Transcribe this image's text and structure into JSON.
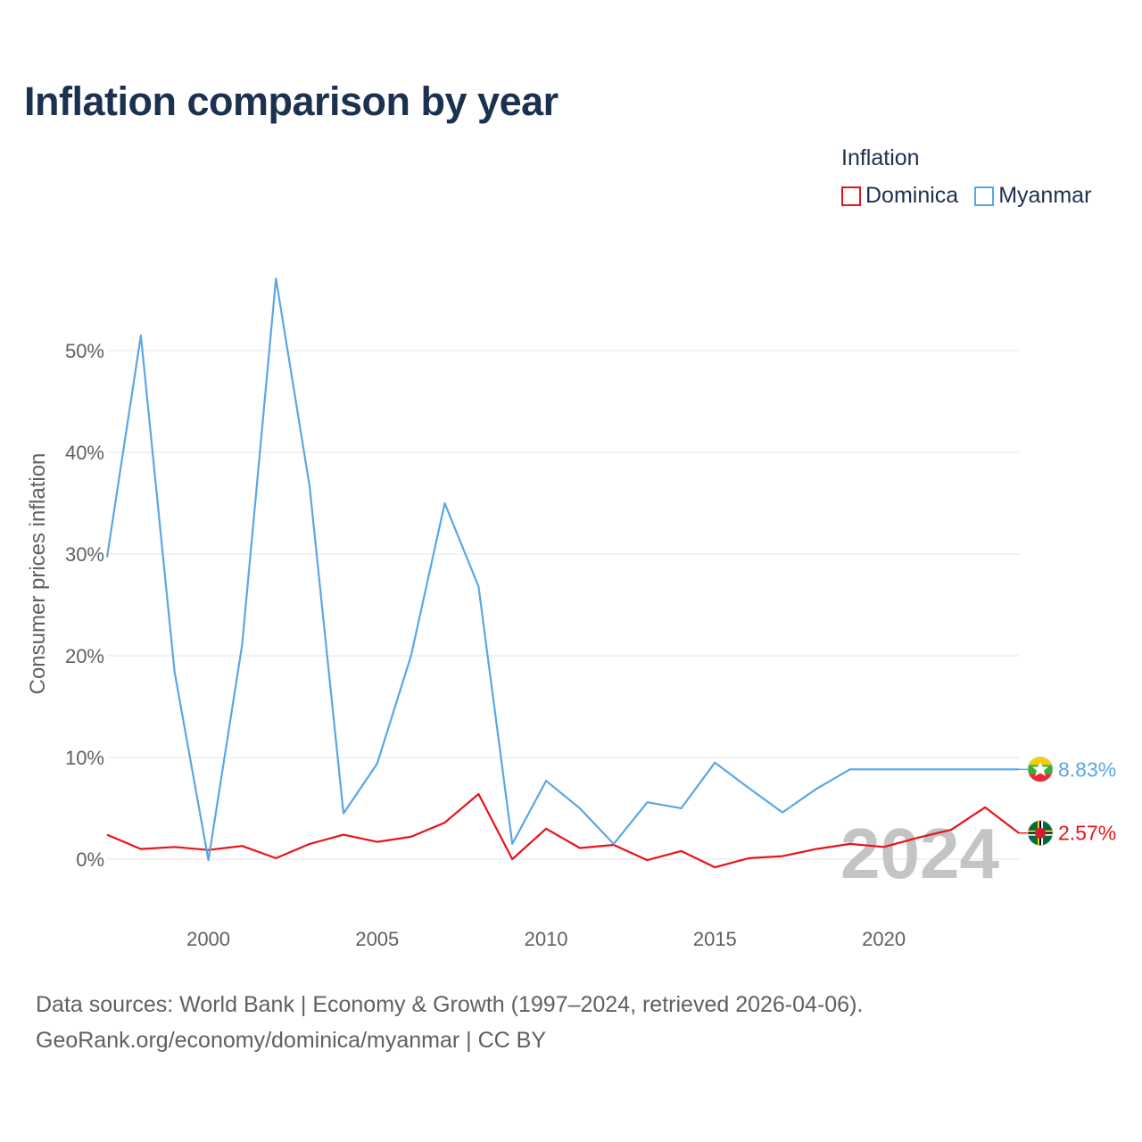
{
  "title": "Inflation comparison by year",
  "legend_title": "Inflation",
  "sources": {
    "line1": "Data sources: World Bank | Economy & Growth (1997–2024, retrieved 2026-04-06).",
    "line2": "GeoRank.org/economy/dominica/myanmar | CC BY"
  },
  "chart_data": {
    "type": "line",
    "title": "Inflation comparison by year",
    "xlabel": "",
    "ylabel": "Consumer prices inflation",
    "xlim": [
      1997,
      2024
    ],
    "ylim": [
      -7.5,
      62
    ],
    "yticks": [
      0,
      10,
      20,
      30,
      40,
      50
    ],
    "ytick_labels": [
      "0%",
      "10%",
      "20%",
      "30%",
      "40%",
      "50%"
    ],
    "xticks": [
      2000,
      2005,
      2010,
      2015,
      2020
    ],
    "xtick_labels": [
      "2000",
      "2005",
      "2010",
      "2015",
      "2020"
    ],
    "grid": true,
    "legend_position": "top-right",
    "watermark_year": "2024",
    "x": [
      1997,
      1998,
      1999,
      2000,
      2001,
      2002,
      2003,
      2004,
      2005,
      2006,
      2007,
      2008,
      2009,
      2010,
      2011,
      2012,
      2013,
      2014,
      2015,
      2016,
      2017,
      2018,
      2019,
      2020,
      2021,
      2022,
      2023,
      2024
    ],
    "series": [
      {
        "name": "Dominica",
        "color": "#e8131a",
        "values": [
          2.4,
          1.0,
          1.2,
          0.9,
          1.3,
          0.1,
          1.5,
          2.4,
          1.7,
          2.2,
          3.6,
          6.4,
          0.0,
          3.0,
          1.1,
          1.4,
          -0.1,
          0.8,
          -0.8,
          0.1,
          0.3,
          1.0,
          1.5,
          1.2,
          2.1,
          2.9,
          5.1,
          2.57
        ],
        "end_label": "2.57%",
        "flag_icon": "dominica-flag-icon"
      },
      {
        "name": "Myanmar",
        "color": "#5aa6e6",
        "values": [
          29.7,
          51.5,
          18.4,
          -0.1,
          21.1,
          57.1,
          36.6,
          4.5,
          9.4,
          20.0,
          35.0,
          26.8,
          1.5,
          7.7,
          5.0,
          1.5,
          5.6,
          5.0,
          9.5,
          7.0,
          4.6,
          6.9,
          8.83,
          8.83,
          8.83,
          8.83,
          8.83,
          8.83
        ],
        "end_label": "8.83%",
        "flag_icon": "myanmar-flag-icon"
      }
    ]
  }
}
